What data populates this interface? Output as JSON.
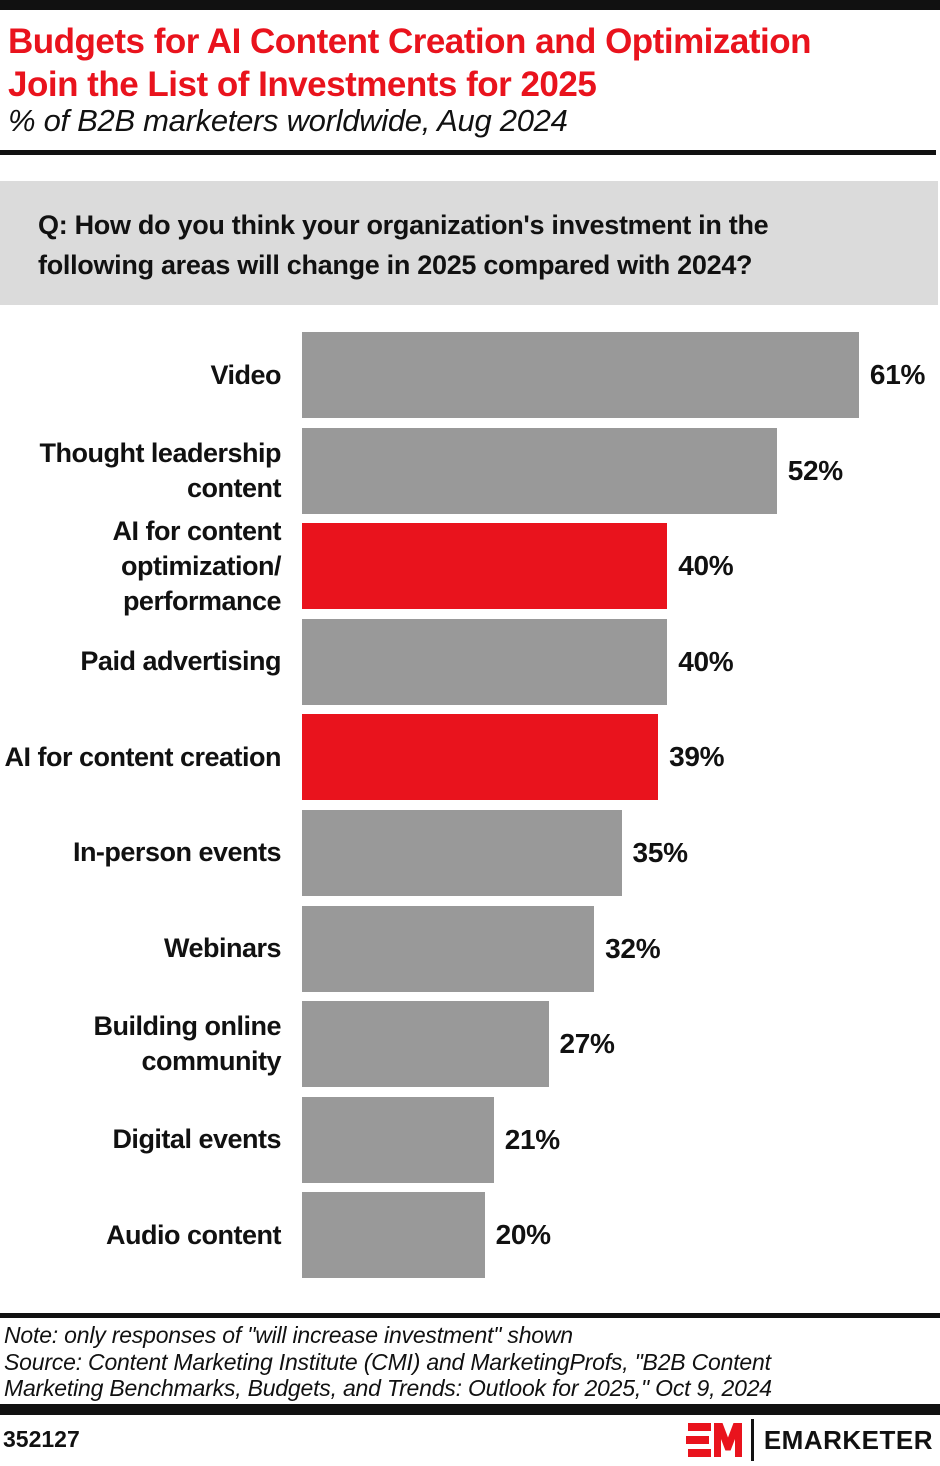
{
  "header": {
    "title_line1": "Budgets for AI Content Creation and Optimization",
    "title_line2": "Join the List of Investments for 2025",
    "subtitle": "% of B2B marketers worldwide, Aug 2024"
  },
  "question": {
    "line1": "Q: How do you think your organization's investment in the",
    "line2": "following areas will change in 2025 compared with 2024?"
  },
  "chart_data": {
    "type": "bar",
    "orientation": "horizontal",
    "title": "Budgets for AI Content Creation and Optimization Join the List of Investments for 2025",
    "subtitle": "% of B2B marketers worldwide, Aug 2024",
    "value_unit": "%",
    "xlim": [
      0,
      100
    ],
    "grid": false,
    "legend": "none",
    "bar_color": "#999999",
    "highlight_color": "#E9131D",
    "categories": [
      "Video",
      "Thought leadership content",
      "AI for content optimization/performance",
      "Paid advertising",
      "AI for content creation",
      "In-person events",
      "Webinars",
      "Building online community",
      "Digital events",
      "Audio content"
    ],
    "values": [
      61,
      52,
      40,
      40,
      39,
      35,
      32,
      27,
      21,
      20
    ],
    "series": [
      {
        "label_lines": [
          "Video"
        ],
        "value": 61,
        "highlight": false
      },
      {
        "label_lines": [
          "Thought leadership",
          "content"
        ],
        "value": 52,
        "highlight": false
      },
      {
        "label_lines": [
          "AI for content",
          "optimization/",
          "performance"
        ],
        "value": 40,
        "highlight": true
      },
      {
        "label_lines": [
          "Paid advertising"
        ],
        "value": 40,
        "highlight": false
      },
      {
        "label_lines": [
          "AI for content creation"
        ],
        "value": 39,
        "highlight": true
      },
      {
        "label_lines": [
          "In-person events"
        ],
        "value": 35,
        "highlight": false
      },
      {
        "label_lines": [
          "Webinars"
        ],
        "value": 32,
        "highlight": false
      },
      {
        "label_lines": [
          "Building online",
          "community"
        ],
        "value": 27,
        "highlight": false
      },
      {
        "label_lines": [
          "Digital events"
        ],
        "value": 21,
        "highlight": false
      },
      {
        "label_lines": [
          "Audio content"
        ],
        "value": 20,
        "highlight": false
      }
    ]
  },
  "footnote": {
    "note": "Note: only responses of \"will increase investment\" shown",
    "source_line1": "Source: Content Marketing Institute (CMI) and MarketingProfs, \"B2B Content",
    "source_line2": "Marketing Benchmarks, Budgets, and Trends: Outlook for 2025,\" Oct 9, 2024"
  },
  "footer": {
    "chart_id": "352127",
    "brand_name": "EMARKETER"
  },
  "colors": {
    "accent_red": "#E9131D",
    "bar_gray": "#999999",
    "question_bg": "#DBDBDB",
    "rule_black": "#111111"
  }
}
